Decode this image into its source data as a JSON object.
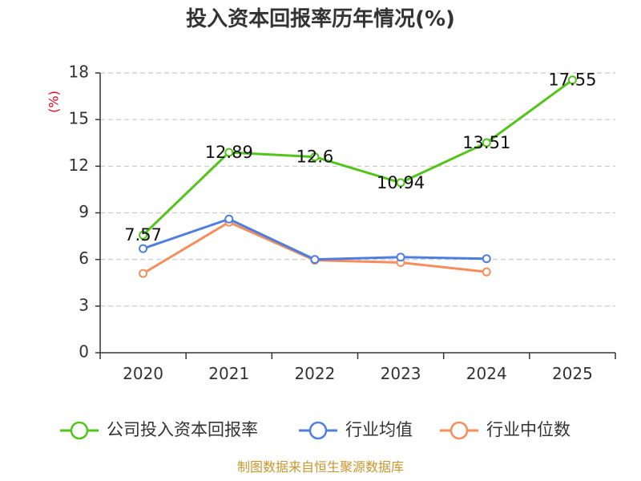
{
  "chart_data": {
    "type": "line",
    "title": "投入资本回报率历年情况(%)",
    "ylabel": "(%)",
    "xlabel": "",
    "categories": [
      "2020",
      "2021",
      "2022",
      "2023",
      "2024",
      "2025"
    ],
    "yticks": [
      "0",
      "3",
      "6",
      "9",
      "12",
      "15",
      "18"
    ],
    "ylim": [
      0,
      18
    ],
    "grid": true,
    "legend_position": "bottom",
    "series": [
      {
        "name": "公司投入资本回报率",
        "color": "#52c41a",
        "values": [
          7.57,
          12.89,
          12.6,
          10.94,
          13.51,
          17.55
        ],
        "labels": [
          "7.57",
          "12.89",
          "12.6",
          "10.94",
          "13.51",
          "17.55"
        ]
      },
      {
        "name": "行业均值",
        "color": "#4e7fde",
        "values": [
          6.7,
          8.6,
          6.0,
          6.15,
          6.05,
          null
        ]
      },
      {
        "name": "行业中位数",
        "color": "#f58d5c",
        "values": [
          5.1,
          8.4,
          5.95,
          5.8,
          5.2,
          null
        ]
      }
    ],
    "source": "制图数据来自恒生聚源数据库"
  }
}
